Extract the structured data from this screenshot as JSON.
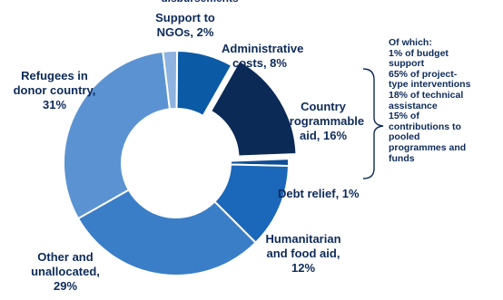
{
  "chart_data": {
    "type": "pie",
    "style": "donut",
    "exploded": "Country programmable aid, 16%",
    "slices": [
      {
        "label_lines": [
          "Administrative",
          "costs, 8%"
        ],
        "value": 8,
        "color": "#0b5aa6"
      },
      {
        "label_lines": [
          "Country",
          "programmable",
          "aid, 16%"
        ],
        "value": 16,
        "color": "#0b2a55"
      },
      {
        "label_lines": [
          "Debt relief, 1%"
        ],
        "value": 1,
        "color": "#0e4e96"
      },
      {
        "label_lines": [
          "Humanitarian",
          "and food aid,",
          "12%"
        ],
        "value": 12,
        "color": "#1b67ba"
      },
      {
        "label_lines": [
          "Other and",
          "unallocated,",
          "29%"
        ],
        "value": 29,
        "color": "#3a7ec8"
      },
      {
        "label_lines": [
          "Refugees in",
          "donor country,",
          "31%"
        ],
        "value": 31,
        "color": "#5b93d2"
      },
      {
        "label_lines": [
          "Support to",
          "NGOs, 2%"
        ],
        "value": 2,
        "color": "#8eb3e0"
      }
    ],
    "truncated_top_text": "disbursements",
    "breakdown_note": {
      "lines": [
        "Of which:",
        "1% of budget",
        "support",
        "65% of project-",
        "type interventions",
        "18% of technical",
        "assistance",
        "15% of",
        "contributions to",
        "pooled",
        "programmes and",
        "funds"
      ]
    }
  }
}
